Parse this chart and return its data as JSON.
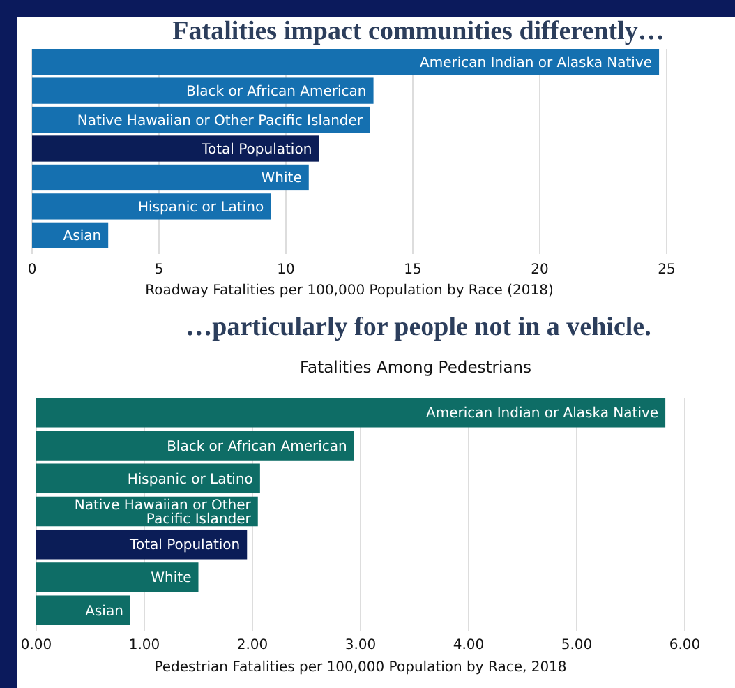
{
  "chart_data": [
    {
      "type": "bar",
      "orientation": "horizontal",
      "title": "Fatalities impact communities differently…",
      "xlabel": "Roadway Fatalities per 100,000 Population by Race (2018)",
      "categories": [
        "American Indian or Alaska Native",
        "Black or African American",
        "Native Hawaiian or Other Pacific Islander",
        "Total Population",
        "White",
        "Hispanic or Latino",
        "Asian"
      ],
      "values": [
        24.7,
        13.45,
        13.3,
        11.3,
        10.9,
        9.4,
        3.0
      ],
      "colors": [
        "#1570b0",
        "#1570b0",
        "#1570b0",
        "#0b1d57",
        "#1570b0",
        "#1570b0",
        "#1570b0"
      ],
      "xlim": [
        0,
        25
      ],
      "xticks": [
        0,
        5,
        10,
        15,
        20,
        25
      ],
      "grid": "x"
    },
    {
      "type": "bar",
      "orientation": "horizontal",
      "title": "…particularly for people not in a vehicle.",
      "subtitle": "Fatalities Among Pedestrians",
      "xlabel": "Pedestrian Fatalities per 100,000 Population by Race, 2018",
      "categories": [
        "American Indian or Alaska Native",
        "Black or African American",
        "Hispanic or Latino",
        "Native Hawaiian or Other Pacific Islander",
        "Total Population",
        "White",
        "Asian"
      ],
      "values": [
        5.82,
        2.94,
        2.07,
        2.05,
        1.95,
        1.5,
        0.87
      ],
      "colors": [
        "#0e6d66",
        "#0e6d66",
        "#0e6d66",
        "#0e6d66",
        "#0b1d57",
        "#0e6d66",
        "#0e6d66"
      ],
      "xlim": [
        0,
        6
      ],
      "xticks": [
        {
          "value": 0,
          "label": "0.00"
        },
        {
          "value": 1,
          "label": "1.00"
        },
        {
          "value": 2,
          "label": "2.00"
        },
        {
          "value": 3,
          "label": "3.00"
        },
        {
          "value": 4,
          "label": "4.00"
        },
        {
          "value": 5,
          "label": "5.00"
        },
        {
          "value": 6,
          "label": "6.00"
        }
      ],
      "grid": "x"
    }
  ]
}
